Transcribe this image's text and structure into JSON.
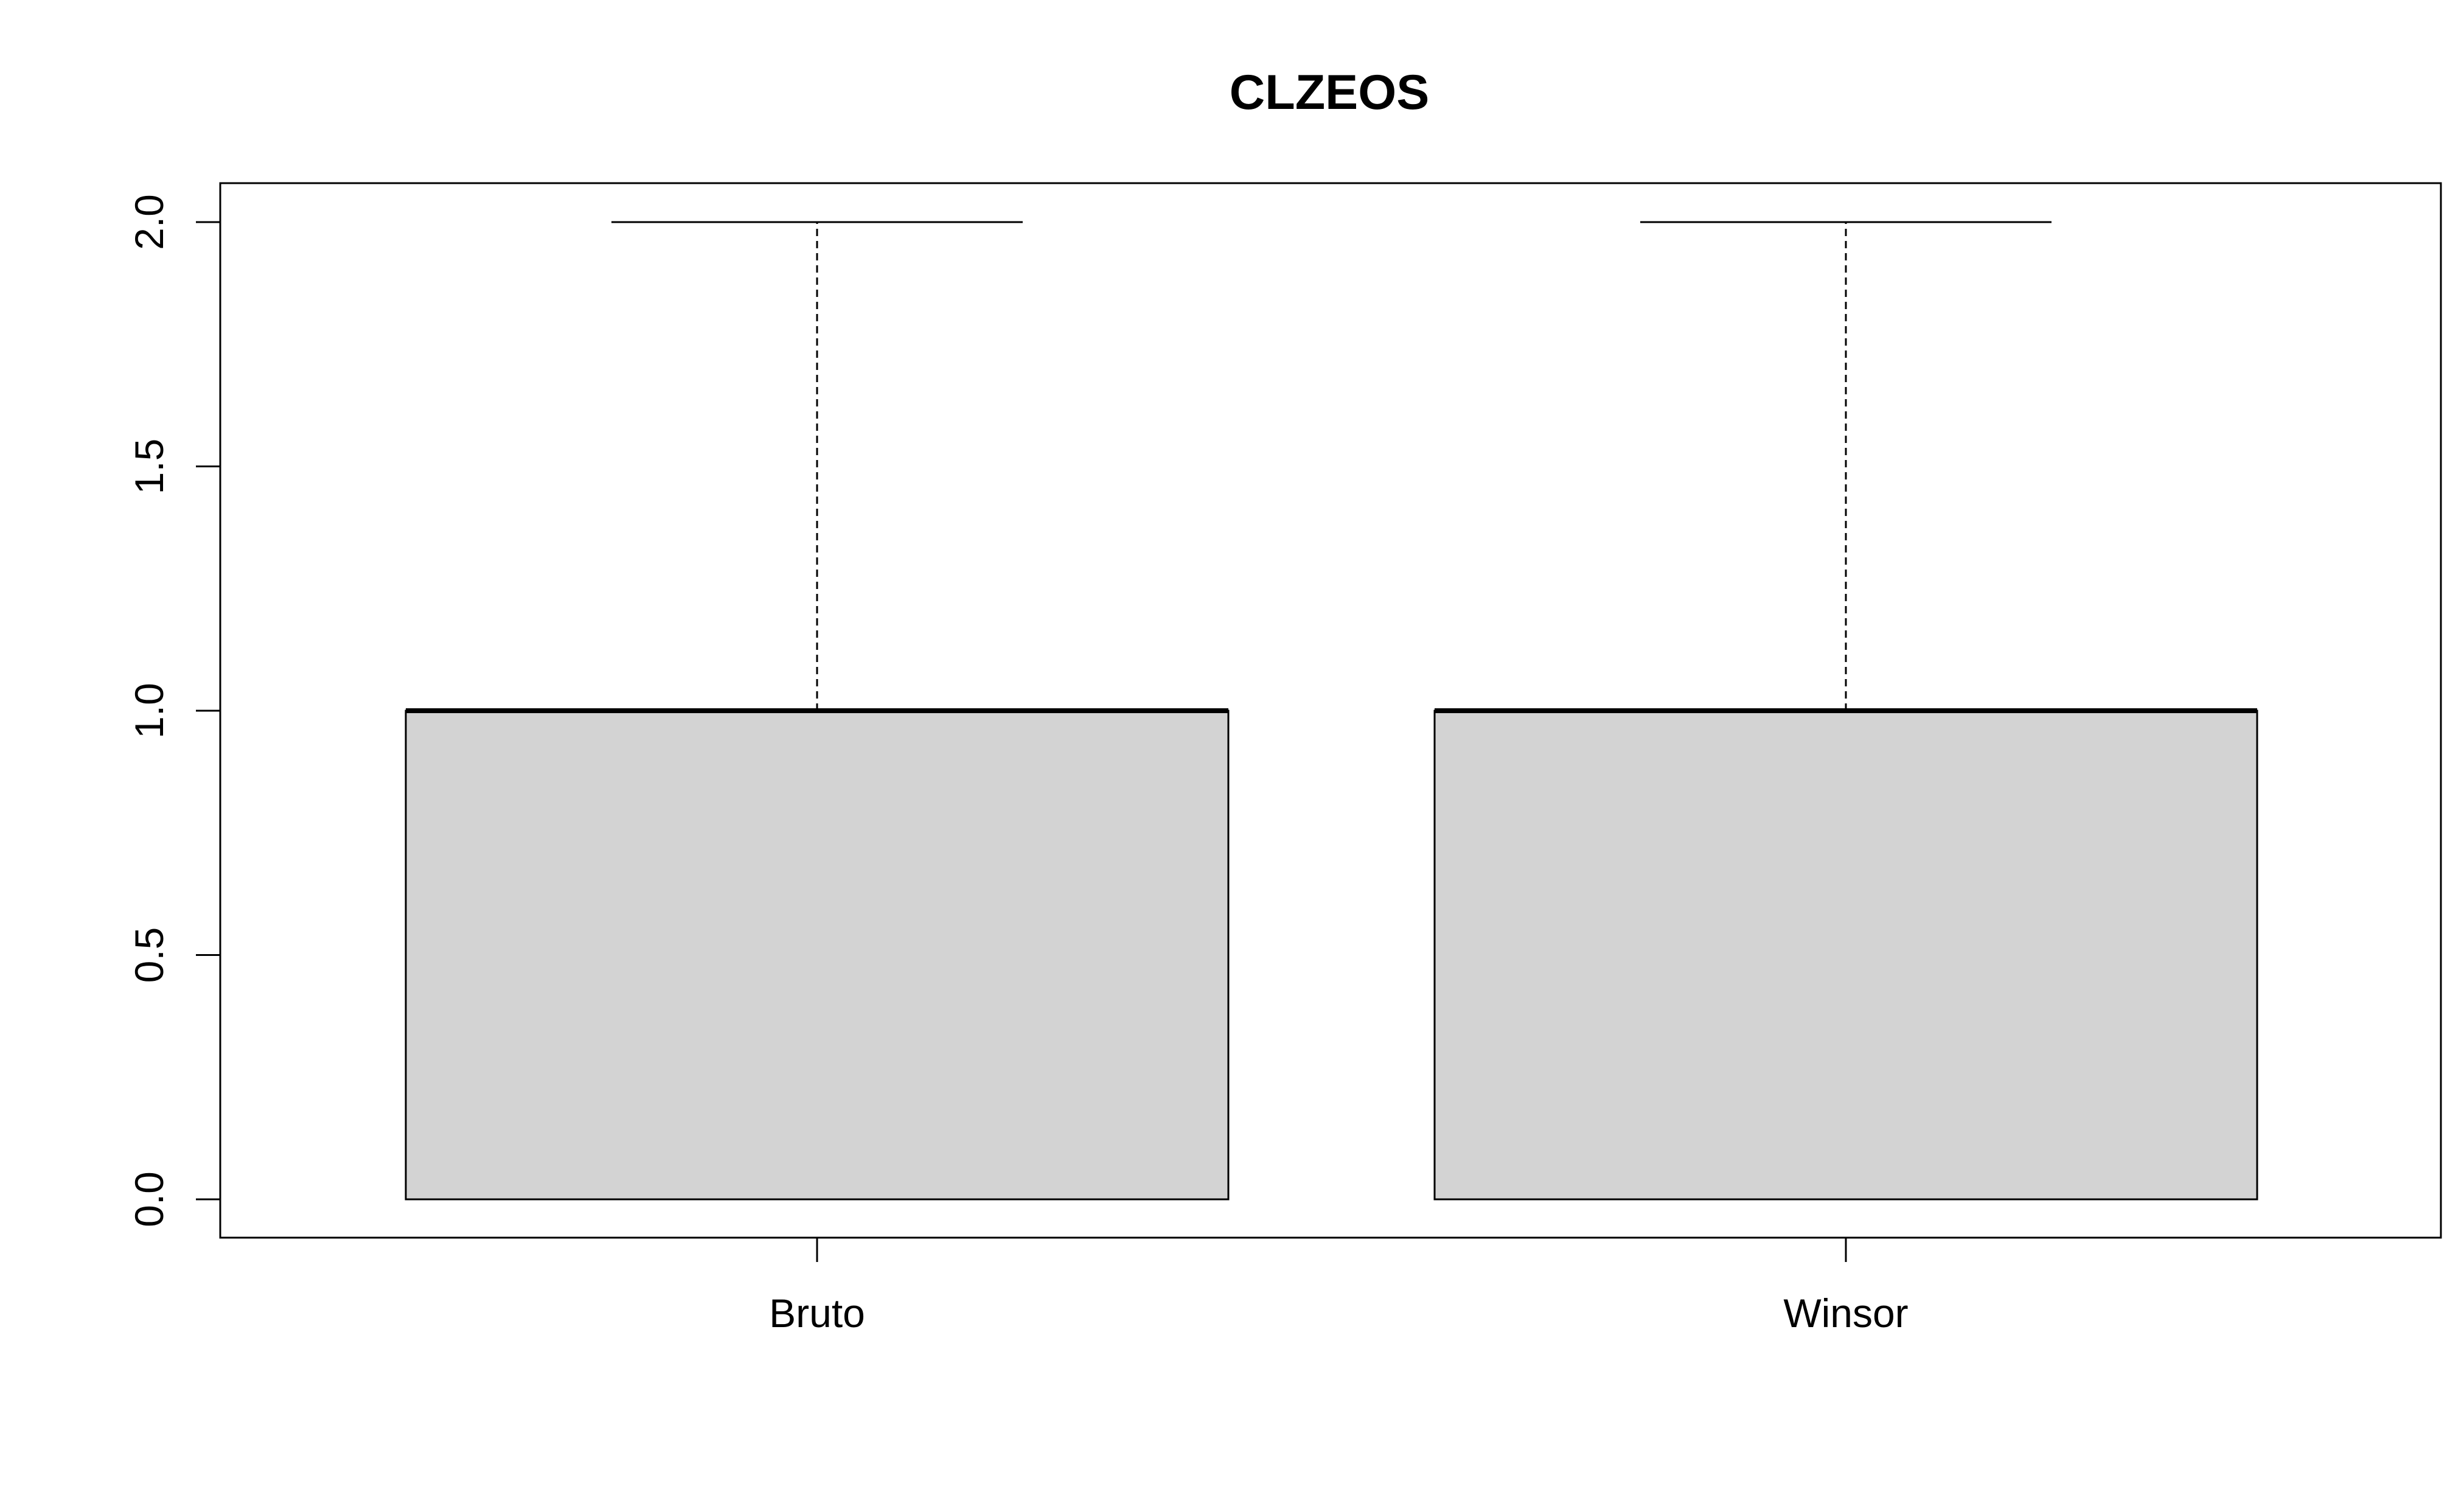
{
  "chart_data": {
    "type": "boxplot",
    "title": "CLZEOS",
    "xlabel": "",
    "ylabel": "",
    "categories": [
      "Bruto",
      "Winsor"
    ],
    "series": [
      {
        "min": 0.0,
        "q1": 0.0,
        "median": 1.0,
        "q3": 1.0,
        "max": 2.0
      },
      {
        "min": 0.0,
        "q1": 0.0,
        "median": 1.0,
        "q3": 1.0,
        "max": 2.0
      }
    ],
    "ylim": [
      -0.08,
      2.08
    ],
    "yticks": [
      0.0,
      0.5,
      1.0,
      1.5,
      2.0
    ],
    "ytick_labels": [
      "0.0",
      "0.5",
      "1.0",
      "1.5",
      "2.0"
    ],
    "grid": false,
    "legend": "none",
    "box_fill": "#d3d3d3",
    "line_color": "#000000"
  }
}
